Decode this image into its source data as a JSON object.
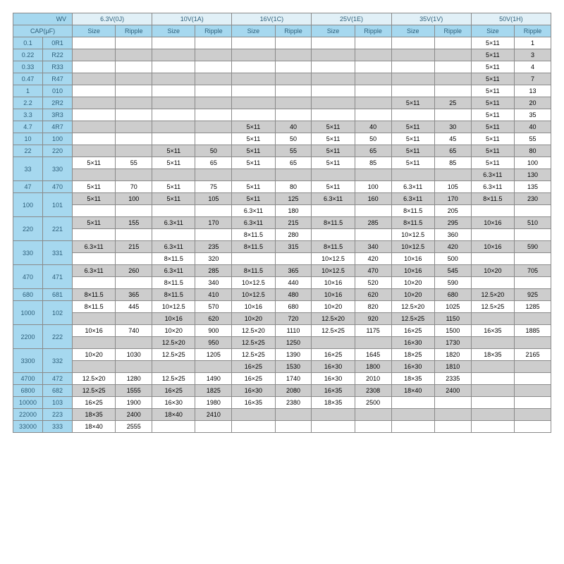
{
  "labels": {
    "wv": "WV",
    "cap": "CAP(μF)",
    "size": "Size",
    "ripple": "Ripple"
  },
  "voltages": [
    "6.3V(0J)",
    "10V(1A)",
    "16V(1C)",
    "25V(1E)",
    "35V(1V)",
    "50V(1H)"
  ],
  "caps": [
    [
      "0.1",
      "0R1"
    ],
    [
      "0.22",
      "R22"
    ],
    [
      "0.33",
      "R33"
    ],
    [
      "0.47",
      "R47"
    ],
    [
      "1",
      "010"
    ],
    [
      "2.2",
      "2R2"
    ],
    [
      "3.3",
      "3R3"
    ],
    [
      "4.7",
      "4R7"
    ],
    [
      "10",
      "100"
    ],
    [
      "22",
      "220"
    ],
    [
      "33",
      "330"
    ],
    [
      "47",
      "470"
    ],
    [
      "100",
      "101"
    ],
    [
      "220",
      "221"
    ],
    [
      "330",
      "331"
    ],
    [
      "470",
      "471"
    ],
    [
      "680",
      "681"
    ],
    [
      "1000",
      "102"
    ],
    [
      "2200",
      "222"
    ],
    [
      "3300",
      "332"
    ],
    [
      "4700",
      "472"
    ],
    [
      "6800",
      "682"
    ],
    [
      "10000",
      "103"
    ],
    [
      "22000",
      "223"
    ],
    [
      "33000",
      "333"
    ]
  ],
  "rows": [
    {
      "cap": 0,
      "span": 1,
      "shade": "w",
      "cells": [
        [
          "",
          ""
        ],
        [
          "",
          ""
        ],
        [
          "",
          ""
        ],
        [
          "",
          ""
        ],
        [
          "",
          ""
        ],
        [
          "5×11",
          "1"
        ]
      ]
    },
    {
      "cap": 1,
      "span": 1,
      "shade": "g",
      "cells": [
        [
          "",
          ""
        ],
        [
          "",
          ""
        ],
        [
          "",
          ""
        ],
        [
          "",
          ""
        ],
        [
          "",
          ""
        ],
        [
          "5×11",
          "3"
        ]
      ]
    },
    {
      "cap": 2,
      "span": 1,
      "shade": "w",
      "cells": [
        [
          "",
          ""
        ],
        [
          "",
          ""
        ],
        [
          "",
          ""
        ],
        [
          "",
          ""
        ],
        [
          "",
          ""
        ],
        [
          "5×11",
          "4"
        ]
      ]
    },
    {
      "cap": 3,
      "span": 1,
      "shade": "g",
      "cells": [
        [
          "",
          ""
        ],
        [
          "",
          ""
        ],
        [
          "",
          ""
        ],
        [
          "",
          ""
        ],
        [
          "",
          ""
        ],
        [
          "5×11",
          "7"
        ]
      ]
    },
    {
      "cap": 4,
      "span": 1,
      "shade": "w",
      "cells": [
        [
          "",
          ""
        ],
        [
          "",
          ""
        ],
        [
          "",
          ""
        ],
        [
          "",
          ""
        ],
        [
          "",
          ""
        ],
        [
          "5×11",
          "13"
        ]
      ]
    },
    {
      "cap": 5,
      "span": 1,
      "shade": "g",
      "cells": [
        [
          "",
          ""
        ],
        [
          "",
          ""
        ],
        [
          "",
          ""
        ],
        [
          "",
          ""
        ],
        [
          "5×11",
          "25"
        ],
        [
          "5×11",
          "20"
        ]
      ]
    },
    {
      "cap": 6,
      "span": 1,
      "shade": "w",
      "cells": [
        [
          "",
          ""
        ],
        [
          "",
          ""
        ],
        [
          "",
          ""
        ],
        [
          "",
          ""
        ],
        [
          "",
          ""
        ],
        [
          "5×11",
          "35"
        ]
      ]
    },
    {
      "cap": 7,
      "span": 1,
      "shade": "g",
      "cells": [
        [
          "",
          ""
        ],
        [
          "",
          ""
        ],
        [
          "5×11",
          "40"
        ],
        [
          "5×11",
          "40"
        ],
        [
          "5×11",
          "30"
        ],
        [
          "5×11",
          "40"
        ]
      ]
    },
    {
      "cap": 8,
      "span": 1,
      "shade": "w",
      "cells": [
        [
          "",
          ""
        ],
        [
          "",
          ""
        ],
        [
          "5×11",
          "50"
        ],
        [
          "5×11",
          "50"
        ],
        [
          "5×11",
          "45"
        ],
        [
          "5×11",
          "55"
        ]
      ]
    },
    {
      "cap": 9,
      "span": 1,
      "shade": "g",
      "cells": [
        [
          "",
          ""
        ],
        [
          "5×11",
          "50"
        ],
        [
          "5×11",
          "55"
        ],
        [
          "5×11",
          "65"
        ],
        [
          "5×11",
          "65"
        ],
        [
          "5×11",
          "80"
        ]
      ]
    },
    {
      "cap": 10,
      "span": 2,
      "shade": "w",
      "cells": [
        [
          "5×11",
          "55"
        ],
        [
          "5×11",
          "65"
        ],
        [
          "5×11",
          "65"
        ],
        [
          "5×11",
          "85"
        ],
        [
          "5×11",
          "85"
        ],
        [
          "5×11",
          "100"
        ]
      ]
    },
    {
      "sub": true,
      "shade": "g",
      "cells": [
        [
          "",
          ""
        ],
        [
          "",
          ""
        ],
        [
          "",
          ""
        ],
        [
          "",
          ""
        ],
        [
          "",
          ""
        ],
        [
          "6.3×11",
          "130"
        ]
      ]
    },
    {
      "cap": 11,
      "span": 1,
      "shade": "w",
      "cells": [
        [
          "5×11",
          "70"
        ],
        [
          "5×11",
          "75"
        ],
        [
          "5×11",
          "80"
        ],
        [
          "5×11",
          "100"
        ],
        [
          "6.3×11",
          "105"
        ],
        [
          "6.3×11",
          "135"
        ]
      ]
    },
    {
      "cap": 12,
      "span": 2,
      "shade": "g",
      "cells": [
        [
          "5×11",
          "100"
        ],
        [
          "5×11",
          "105"
        ],
        [
          "5×11",
          "125"
        ],
        [
          "6.3×11",
          "160"
        ],
        [
          "6.3×11",
          "170"
        ],
        [
          "8×11.5",
          "230"
        ]
      ]
    },
    {
      "sub": true,
      "shade": "w",
      "cells": [
        [
          "",
          ""
        ],
        [
          "",
          ""
        ],
        [
          "6.3×11",
          "180"
        ],
        [
          "",
          ""
        ],
        [
          "8×11.5",
          "205"
        ],
        [
          "",
          ""
        ]
      ]
    },
    {
      "cap": 13,
      "span": 2,
      "shade": "g",
      "cells": [
        [
          "5×11",
          "155"
        ],
        [
          "6.3×11",
          "170"
        ],
        [
          "6.3×11",
          "215"
        ],
        [
          "8×11.5",
          "285"
        ],
        [
          "8×11.5",
          "295"
        ],
        [
          "10×16",
          "510"
        ]
      ]
    },
    {
      "sub": true,
      "shade": "w",
      "cells": [
        [
          "",
          ""
        ],
        [
          "",
          ""
        ],
        [
          "8×11.5",
          "280"
        ],
        [
          "",
          ""
        ],
        [
          "10×12.5",
          "360"
        ],
        [
          "",
          ""
        ]
      ]
    },
    {
      "cap": 14,
      "span": 2,
      "shade": "g",
      "cells": [
        [
          "6.3×11",
          "215"
        ],
        [
          "6.3×11",
          "235"
        ],
        [
          "8×11.5",
          "315"
        ],
        [
          "8×11.5",
          "340"
        ],
        [
          "10×12.5",
          "420"
        ],
        [
          "10×16",
          "590"
        ]
      ]
    },
    {
      "sub": true,
      "shade": "w",
      "cells": [
        [
          "",
          ""
        ],
        [
          "8×11.5",
          "320"
        ],
        [
          "",
          ""
        ],
        [
          "10×12.5",
          "420"
        ],
        [
          "10×16",
          "500"
        ],
        [
          "",
          ""
        ]
      ]
    },
    {
      "cap": 15,
      "span": 2,
      "shade": "g",
      "cells": [
        [
          "6.3×11",
          "260"
        ],
        [
          "6.3×11",
          "285"
        ],
        [
          "8×11.5",
          "365"
        ],
        [
          "10×12.5",
          "470"
        ],
        [
          "10×16",
          "545"
        ],
        [
          "10×20",
          "705"
        ]
      ]
    },
    {
      "sub": true,
      "shade": "w",
      "cells": [
        [
          "",
          ""
        ],
        [
          "8×11.5",
          "340"
        ],
        [
          "10×12.5",
          "440"
        ],
        [
          "10×16",
          "520"
        ],
        [
          "10×20",
          "590"
        ],
        [
          "",
          ""
        ]
      ]
    },
    {
      "cap": 16,
      "span": 1,
      "shade": "g",
      "cells": [
        [
          "8×11.5",
          "365"
        ],
        [
          "8×11.5",
          "410"
        ],
        [
          "10×12.5",
          "480"
        ],
        [
          "10×16",
          "620"
        ],
        [
          "10×20",
          "680"
        ],
        [
          "12.5×20",
          "925"
        ]
      ]
    },
    {
      "cap": 17,
      "span": 2,
      "shade": "w",
      "cells": [
        [
          "8×11.5",
          "445"
        ],
        [
          "10×12.5",
          "570"
        ],
        [
          "10×16",
          "680"
        ],
        [
          "10×20",
          "820"
        ],
        [
          "12.5×20",
          "1025"
        ],
        [
          "12.5×25",
          "1285"
        ]
      ]
    },
    {
      "sub": true,
      "shade": "g",
      "cells": [
        [
          "",
          ""
        ],
        [
          "10×16",
          "620"
        ],
        [
          "10×20",
          "720"
        ],
        [
          "12.5×20",
          "920"
        ],
        [
          "12.5×25",
          "1150"
        ],
        [
          "",
          ""
        ]
      ]
    },
    {
      "cap": 18,
      "span": 2,
      "shade": "w",
      "cells": [
        [
          "10×16",
          "740"
        ],
        [
          "10×20",
          "900"
        ],
        [
          "12.5×20",
          "1110"
        ],
        [
          "12.5×25",
          "1175"
        ],
        [
          "16×25",
          "1500"
        ],
        [
          "16×35",
          "1885"
        ]
      ]
    },
    {
      "sub": true,
      "shade": "g",
      "cells": [
        [
          "",
          ""
        ],
        [
          "12.5×20",
          "950"
        ],
        [
          "12.5×25",
          "1250"
        ],
        [
          "",
          ""
        ],
        [
          "16×30",
          "1730"
        ],
        [
          "",
          ""
        ]
      ]
    },
    {
      "cap": 19,
      "span": 2,
      "shade": "w",
      "cells": [
        [
          "10×20",
          "1030"
        ],
        [
          "12.5×25",
          "1205"
        ],
        [
          "12.5×25",
          "1390"
        ],
        [
          "16×25",
          "1645"
        ],
        [
          "18×25",
          "1820"
        ],
        [
          "18×35",
          "2165"
        ]
      ]
    },
    {
      "sub": true,
      "shade": "g",
      "cells": [
        [
          "",
          ""
        ],
        [
          "",
          ""
        ],
        [
          "16×25",
          "1530"
        ],
        [
          "16×30",
          "1800"
        ],
        [
          "16×30",
          "1810"
        ],
        [
          "",
          ""
        ]
      ]
    },
    {
      "cap": 20,
      "span": 1,
      "shade": "w",
      "cells": [
        [
          "12.5×20",
          "1280"
        ],
        [
          "12.5×25",
          "1490"
        ],
        [
          "16×25",
          "1740"
        ],
        [
          "16×30",
          "2010"
        ],
        [
          "18×35",
          "2335"
        ],
        [
          "",
          ""
        ]
      ]
    },
    {
      "cap": 21,
      "span": 1,
      "shade": "g",
      "cells": [
        [
          "12.5×25",
          "1555"
        ],
        [
          "16×25",
          "1825"
        ],
        [
          "16×30",
          "2080"
        ],
        [
          "16×35",
          "2308"
        ],
        [
          "18×40",
          "2400"
        ],
        [
          "",
          ""
        ]
      ]
    },
    {
      "cap": 22,
      "span": 1,
      "shade": "w",
      "cells": [
        [
          "16×25",
          "1900"
        ],
        [
          "16×30",
          "1980"
        ],
        [
          "16×35",
          "2380"
        ],
        [
          "18×35",
          "2500"
        ],
        [
          "",
          ""
        ],
        [
          "",
          ""
        ]
      ]
    },
    {
      "cap": 23,
      "span": 1,
      "shade": "g",
      "cells": [
        [
          "18×35",
          "2400"
        ],
        [
          "18×40",
          "2410"
        ],
        [
          "",
          ""
        ],
        [
          "",
          ""
        ],
        [
          "",
          ""
        ],
        [
          "",
          ""
        ]
      ]
    },
    {
      "cap": 24,
      "span": 1,
      "shade": "w",
      "cells": [
        [
          "18×40",
          "2555"
        ],
        [
          "",
          ""
        ],
        [
          "",
          ""
        ],
        [
          "",
          ""
        ],
        [
          "",
          ""
        ],
        [
          "",
          ""
        ]
      ]
    }
  ],
  "colors": {
    "header_blue": "#a6d8ef",
    "header_light": "#e1f0f7",
    "grey": "#cdcdcd",
    "white": "#ffffff",
    "border": "#8a8a8a",
    "text_blue": "#2d5f7a"
  }
}
